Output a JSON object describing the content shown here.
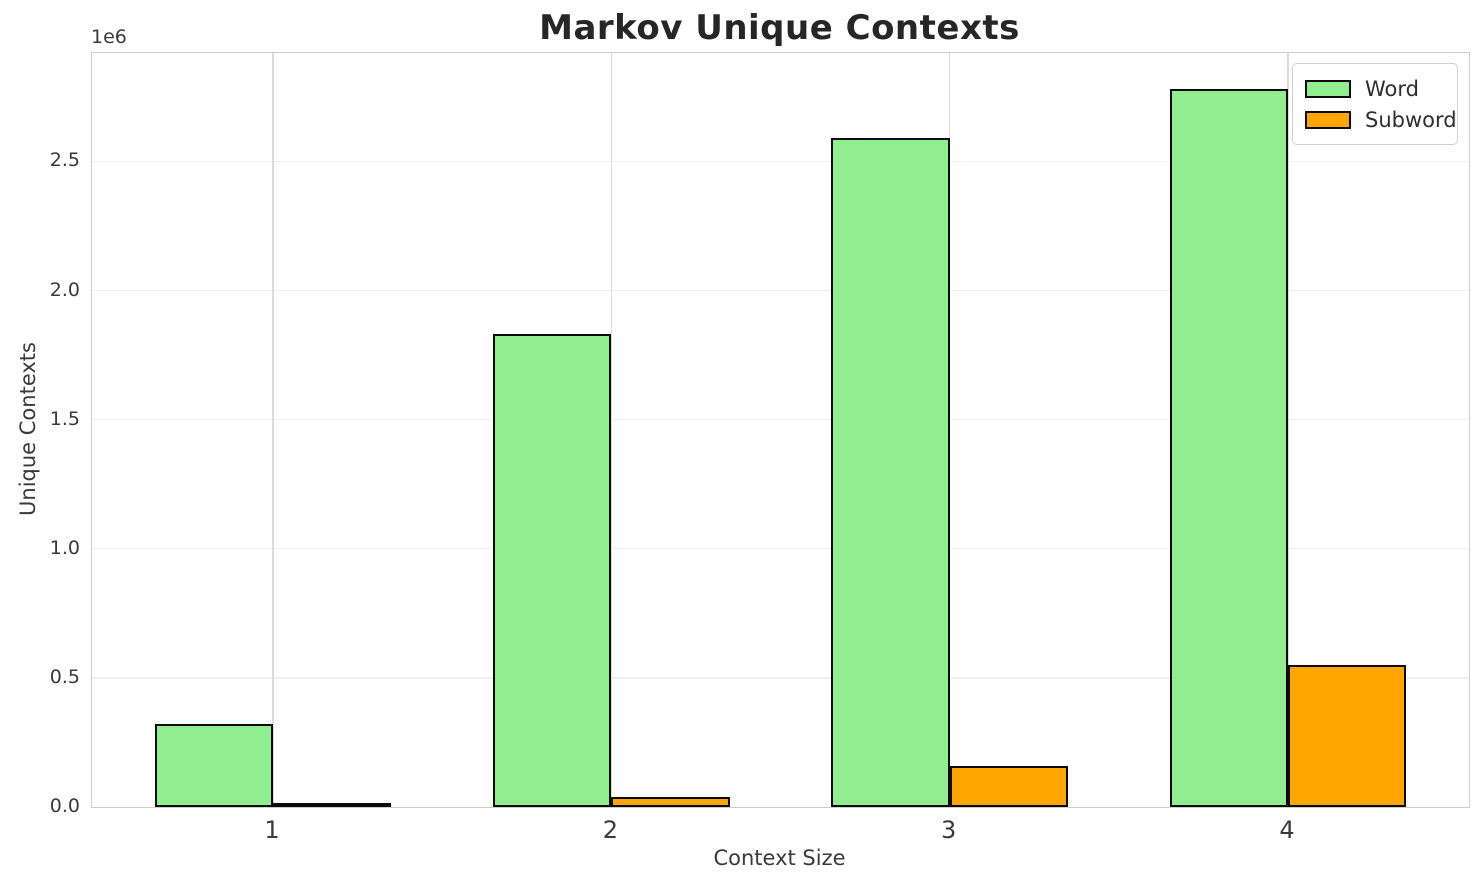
{
  "chart_data": {
    "type": "bar",
    "title": "Markov Unique Contexts",
    "xlabel": "Context Size",
    "ylabel": "Unique Contexts",
    "y_scale_offset_label": "1e6",
    "categories": [
      "1",
      "2",
      "3",
      "4"
    ],
    "series": [
      {
        "name": "Word",
        "color": "#90ee90",
        "values": [
          320000,
          1830000,
          2590000,
          2780000
        ]
      },
      {
        "name": "Subword",
        "color": "#ffa500",
        "values": [
          5000,
          38000,
          160000,
          550000
        ]
      }
    ],
    "bar_edge_color": "#0a0a0a",
    "bar_width_fraction": 0.35,
    "xlim": [
      0.465,
      4.535
    ],
    "ylim": [
      0,
      2920000
    ],
    "yticks": {
      "values": [
        0,
        500000,
        1000000,
        1500000,
        2000000,
        2500000
      ],
      "labels": [
        "0.0",
        "0.5",
        "1.0",
        "1.5",
        "2.0",
        "2.5"
      ]
    },
    "grid": true,
    "legend_position": "upper right"
  },
  "style": {
    "text_color": "#262626",
    "tick_color": "#3a3a3a",
    "spine_color": "#cdcdcd",
    "grid_x_color": "#dcdcdc",
    "grid_y_color": "#efefef",
    "background": "#ffffff"
  }
}
